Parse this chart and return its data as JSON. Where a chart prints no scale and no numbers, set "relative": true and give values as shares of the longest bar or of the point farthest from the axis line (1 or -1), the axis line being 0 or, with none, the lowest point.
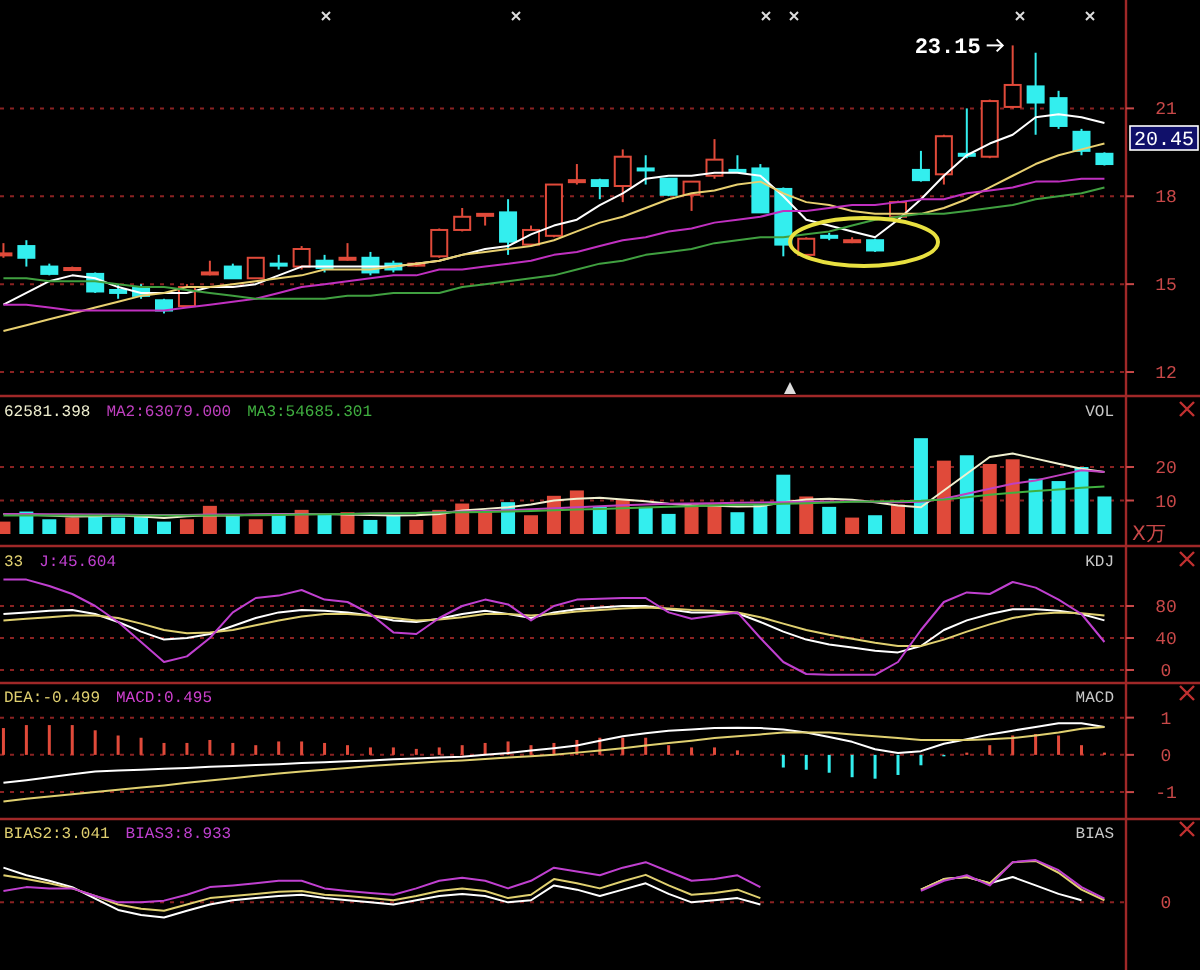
{
  "chart_data": [
    {
      "type": "candlestick",
      "categories": [
        null,
        null,
        null,
        null,
        null,
        null,
        null,
        null,
        null,
        null,
        null,
        null,
        null,
        null,
        null,
        null,
        null,
        null,
        null,
        null,
        null,
        null,
        null,
        null,
        null,
        null,
        null,
        null,
        null,
        null,
        null,
        null,
        null,
        null,
        null,
        null,
        null,
        null,
        null,
        null,
        null,
        null,
        null,
        null,
        null,
        null,
        null,
        null,
        null
      ],
      "ohlc": [
        [
          16.0,
          16.4,
          15.9,
          16.05
        ],
        [
          16.3,
          16.5,
          15.6,
          15.9
        ],
        [
          15.6,
          15.7,
          15.3,
          15.35
        ],
        [
          15.5,
          15.6,
          15.45,
          15.55
        ],
        [
          15.35,
          15.4,
          14.7,
          14.75
        ],
        [
          14.8,
          15.0,
          14.5,
          14.7
        ],
        [
          14.9,
          15.0,
          14.5,
          14.6
        ],
        [
          14.45,
          14.5,
          14.0,
          14.1
        ],
        [
          14.25,
          15.0,
          14.2,
          14.9
        ],
        [
          15.35,
          15.8,
          15.3,
          15.4
        ],
        [
          15.6,
          15.7,
          15.2,
          15.2
        ],
        [
          15.2,
          15.9,
          15.2,
          15.9
        ],
        [
          15.7,
          16.0,
          15.5,
          15.65
        ],
        [
          15.6,
          16.3,
          15.5,
          16.2
        ],
        [
          15.8,
          16.0,
          15.4,
          15.55
        ],
        [
          15.85,
          16.4,
          15.8,
          15.9
        ],
        [
          15.9,
          16.1,
          15.3,
          15.4
        ],
        [
          15.7,
          15.8,
          15.4,
          15.5
        ],
        [
          15.65,
          15.75,
          15.6,
          15.7
        ],
        [
          15.95,
          16.9,
          15.9,
          16.85
        ],
        [
          16.85,
          17.6,
          16.8,
          17.3
        ],
        [
          17.35,
          17.4,
          17.0,
          17.4
        ],
        [
          17.45,
          17.9,
          16.0,
          16.45
        ],
        [
          16.35,
          17.0,
          16.3,
          16.85
        ],
        [
          16.65,
          18.4,
          16.6,
          18.4
        ],
        [
          18.5,
          19.1,
          18.4,
          18.55
        ],
        [
          18.55,
          18.6,
          17.9,
          18.35
        ],
        [
          18.35,
          19.6,
          17.8,
          19.35
        ],
        [
          18.95,
          19.4,
          18.4,
          18.9
        ],
        [
          18.6,
          18.6,
          18.0,
          18.05
        ],
        [
          18.05,
          18.5,
          17.5,
          18.5
        ],
        [
          18.7,
          19.95,
          18.6,
          19.25
        ],
        [
          18.9,
          19.4,
          18.8,
          18.85
        ],
        [
          18.95,
          19.1,
          17.45,
          17.45
        ],
        [
          18.25,
          18.3,
          15.95,
          16.35
        ],
        [
          16.0,
          16.6,
          15.9,
          16.55
        ],
        [
          16.65,
          16.75,
          16.5,
          16.6
        ],
        [
          16.45,
          16.6,
          16.4,
          16.5
        ],
        [
          16.5,
          16.55,
          16.1,
          16.15
        ],
        [
          17.3,
          17.85,
          17.3,
          17.8
        ],
        [
          18.9,
          19.55,
          18.5,
          18.55
        ],
        [
          18.75,
          20.1,
          18.4,
          20.05
        ],
        [
          19.45,
          21.0,
          19.3,
          19.4
        ],
        [
          19.35,
          21.3,
          19.3,
          21.25
        ],
        [
          21.05,
          23.15,
          21.0,
          21.8
        ],
        [
          21.75,
          22.9,
          20.1,
          21.2
        ],
        [
          21.35,
          21.6,
          20.3,
          20.4
        ],
        [
          20.2,
          20.3,
          19.4,
          19.55
        ],
        [
          19.45,
          19.5,
          19.05,
          19.1
        ]
      ],
      "colors": [
        "#e04a3a",
        "#33eeee",
        "#33eeee",
        "#e04a3a",
        "#33eeee",
        "#33eeee",
        "#33eeee",
        "#33eeee",
        "#e04a3a",
        "#e04a3a",
        "#33eeee",
        "#e04a3a",
        "#33eeee",
        "#e04a3a",
        "#33eeee",
        "#e04a3a",
        "#33eeee",
        "#33eeee",
        "#e04a3a",
        "#e04a3a",
        "#e04a3a",
        "#e04a3a",
        "#33eeee",
        "#e04a3a",
        "#e04a3a",
        "#e04a3a",
        "#33eeee",
        "#e04a3a",
        "#33eeee",
        "#33eeee",
        "#e04a3a",
        "#e04a3a",
        "#33eeee",
        "#33eeee",
        "#33eeee",
        "#e04a3a",
        "#33eeee",
        "#e04a3a",
        "#33eeee",
        "#e04a3a",
        "#33eeee",
        "#e04a3a",
        "#33eeee",
        "#e04a3a",
        "#e04a3a",
        "#33eeee",
        "#33eeee",
        "#33eeee",
        "#33eeee"
      ],
      "series": [
        {
          "type": "line",
          "color": "#ffffff",
          "values": [
            14.3,
            14.7,
            15.1,
            15.3,
            15.2,
            14.9,
            14.7,
            14.7,
            14.7,
            14.9,
            14.9,
            15.0,
            15.3,
            15.6,
            15.6,
            15.6,
            15.6,
            15.6,
            15.7,
            15.8,
            16.0,
            16.2,
            16.3,
            16.7,
            17.0,
            17.2,
            17.7,
            18.1,
            18.6,
            18.7,
            18.7,
            18.8,
            18.8,
            18.7,
            18.0,
            17.2,
            17.0,
            16.8,
            16.6,
            17.2,
            17.9,
            18.7,
            19.4,
            19.8,
            20.1,
            20.7,
            20.8,
            20.7,
            20.5
          ]
        },
        {
          "type": "line",
          "color": "#e8d070",
          "values": [
            13.4,
            13.6,
            13.8,
            14.0,
            14.2,
            14.4,
            14.6,
            14.7,
            14.9,
            14.9,
            15.0,
            15.1,
            15.2,
            15.3,
            15.5,
            15.5,
            15.5,
            15.6,
            15.7,
            15.8,
            16.0,
            16.1,
            16.2,
            16.3,
            16.5,
            16.8,
            17.1,
            17.3,
            17.6,
            17.9,
            18.1,
            18.2,
            18.4,
            18.5,
            18.1,
            17.8,
            17.7,
            17.5,
            17.4,
            17.4,
            17.4,
            17.6,
            17.9,
            18.3,
            18.7,
            19.1,
            19.4,
            19.6,
            19.8
          ]
        },
        {
          "type": "line",
          "color": "#c030c0",
          "values": [
            14.3,
            14.3,
            14.2,
            14.1,
            14.1,
            14.1,
            14.1,
            14.1,
            14.2,
            14.3,
            14.4,
            14.5,
            14.7,
            14.9,
            15.0,
            15.1,
            15.2,
            15.3,
            15.3,
            15.5,
            15.5,
            15.6,
            15.7,
            15.8,
            16.0,
            16.1,
            16.3,
            16.5,
            16.6,
            16.8,
            16.9,
            17.1,
            17.2,
            17.3,
            17.5,
            17.5,
            17.6,
            17.7,
            17.7,
            17.8,
            17.9,
            17.9,
            18.1,
            18.2,
            18.3,
            18.5,
            18.5,
            18.6,
            18.6
          ]
        },
        {
          "type": "line",
          "color": "#40a040",
          "values": [
            15.2,
            15.2,
            15.1,
            15.1,
            15.1,
            15.0,
            14.9,
            14.9,
            14.8,
            14.7,
            14.6,
            14.5,
            14.5,
            14.5,
            14.5,
            14.6,
            14.6,
            14.7,
            14.7,
            14.7,
            14.9,
            15.0,
            15.1,
            15.2,
            15.3,
            15.5,
            15.7,
            15.8,
            16.0,
            16.1,
            16.2,
            16.4,
            16.5,
            16.6,
            16.6,
            16.7,
            16.8,
            17.0,
            17.2,
            17.3,
            17.4,
            17.4,
            17.5,
            17.6,
            17.7,
            17.9,
            18.0,
            18.1,
            18.3
          ]
        }
      ],
      "ylim": [
        11.25,
        24.7
      ],
      "yticks": [
        12,
        15,
        18,
        21
      ],
      "grid": "y",
      "tick_labels": "y",
      "annotations": [
        "23.15",
        "20.45"
      ]
    },
    {
      "type": "bar",
      "title": "VOL",
      "ylabel": "X万",
      "categories": [
        null,
        null,
        null,
        null,
        null,
        null,
        null,
        null,
        null,
        null,
        null,
        null,
        null,
        null,
        null,
        null,
        null,
        null,
        null,
        null,
        null,
        null,
        null,
        null,
        null,
        null,
        null,
        null,
        null,
        null,
        null,
        null,
        null,
        null,
        null,
        null,
        null,
        null,
        null,
        null,
        null,
        null,
        null,
        null,
        null,
        null,
        null,
        null,
        null
      ],
      "series": [
        {
          "type": "bar",
          "values": [
            3.7,
            6.7,
            4.4,
            4.9,
            6.0,
            4.9,
            5.6,
            3.7,
            4.4,
            8.4,
            5.6,
            4.4,
            6.0,
            7.2,
            6.0,
            6.5,
            4.2,
            5.6,
            4.2,
            7.2,
            9.1,
            6.7,
            9.5,
            5.6,
            11.4,
            13.0,
            8.1,
            10.2,
            8.1,
            6.0,
            8.8,
            8.8,
            6.5,
            8.8,
            17.7,
            11.2,
            8.1,
            4.9,
            5.6,
            8.8,
            28.6,
            21.9,
            23.5,
            20.9,
            22.3,
            16.5,
            15.8,
            20.0,
            11.2
          ],
          "colors": [
            "#e04a3a",
            "#33eeee",
            "#33eeee",
            "#e04a3a",
            "#33eeee",
            "#33eeee",
            "#33eeee",
            "#33eeee",
            "#e04a3a",
            "#e04a3a",
            "#33eeee",
            "#e04a3a",
            "#33eeee",
            "#e04a3a",
            "#33eeee",
            "#e04a3a",
            "#33eeee",
            "#33eeee",
            "#e04a3a",
            "#e04a3a",
            "#e04a3a",
            "#e04a3a",
            "#33eeee",
            "#e04a3a",
            "#e04a3a",
            "#e04a3a",
            "#33eeee",
            "#e04a3a",
            "#33eeee",
            "#33eeee",
            "#e04a3a",
            "#e04a3a",
            "#33eeee",
            "#33eeee",
            "#33eeee",
            "#e04a3a",
            "#33eeee",
            "#e04a3a",
            "#33eeee",
            "#e04a3a",
            "#33eeee",
            "#e04a3a",
            "#33eeee",
            "#e04a3a",
            "#e04a3a",
            "#33eeee",
            "#33eeee",
            "#33eeee",
            "#33eeee"
          ]
        },
        {
          "type": "line",
          "name": "62581.398",
          "color": "#f0f0d0",
          "values": [
            6.0,
            5.8,
            5.5,
            5.2,
            5.3,
            5.5,
            5.2,
            4.8,
            5.3,
            5.6,
            5.5,
            5.8,
            5.9,
            6.0,
            6.0,
            5.8,
            5.7,
            5.5,
            5.6,
            6.0,
            7.0,
            7.5,
            8.0,
            8.8,
            10.0,
            10.5,
            10.8,
            10.3,
            9.8,
            9.0,
            8.6,
            8.4,
            8.2,
            8.3,
            9.5,
            10.3,
            10.5,
            10.2,
            9.5,
            8.5,
            8.0,
            13.0,
            18.0,
            23.0,
            24.0,
            22.5,
            21.0,
            19.5,
            18.5
          ]
        },
        {
          "type": "line",
          "name": "MA2:63079.000",
          "color": "#c040c0",
          "values": [
            6.0,
            6.0,
            5.9,
            5.9,
            5.8,
            5.8,
            5.7,
            5.7,
            5.7,
            5.8,
            5.8,
            5.8,
            5.9,
            5.9,
            6.0,
            6.0,
            6.1,
            6.2,
            6.3,
            6.5,
            6.7,
            6.9,
            7.1,
            7.4,
            7.7,
            8.0,
            8.3,
            8.6,
            8.8,
            9.0,
            9.1,
            9.2,
            9.3,
            9.4,
            9.5,
            9.6,
            9.7,
            9.7,
            9.6,
            9.5,
            9.6,
            10.5,
            12.0,
            13.5,
            15.0,
            16.0,
            17.5,
            19.0,
            18.5
          ]
        },
        {
          "type": "line",
          "name": "MA3:54685.301",
          "color": "#40b040",
          "values": [
            5.5,
            5.5,
            5.5,
            5.5,
            5.5,
            5.5,
            5.5,
            5.5,
            5.5,
            5.5,
            5.6,
            5.6,
            5.7,
            5.8,
            5.9,
            6.0,
            6.1,
            6.2,
            6.3,
            6.4,
            6.5,
            6.6,
            6.7,
            6.9,
            7.1,
            7.3,
            7.5,
            7.7,
            7.9,
            8.1,
            8.3,
            8.5,
            8.7,
            8.8,
            9.0,
            9.2,
            9.4,
            9.6,
            9.7,
            9.8,
            9.9,
            10.3,
            11.0,
            11.7,
            12.3,
            12.8,
            13.3,
            13.8,
            14.2
          ]
        }
      ],
      "ylim": [
        0,
        40
      ],
      "yticks": [
        10,
        20
      ],
      "grid": "y",
      "tick_labels": "y",
      "legend": "top left"
    },
    {
      "type": "line",
      "title": "KDJ",
      "categories": [
        null,
        null,
        null,
        null,
        null,
        null,
        null,
        null,
        null,
        null,
        null,
        null,
        null,
        null,
        null,
        null,
        null,
        null,
        null,
        null,
        null,
        null,
        null,
        null,
        null,
        null,
        null,
        null,
        null,
        null,
        null,
        null,
        null,
        null,
        null,
        null,
        null,
        null,
        null,
        null,
        null,
        null,
        null,
        null,
        null,
        null,
        null,
        null,
        null
      ],
      "series": [
        {
          "color": "#ffffff",
          "values": [
            70,
            72,
            74,
            75,
            70,
            60,
            48,
            38,
            40,
            45,
            55,
            65,
            72,
            75,
            74,
            72,
            68,
            62,
            60,
            64,
            70,
            74,
            70,
            65,
            72,
            76,
            78,
            80,
            80,
            76,
            72,
            72,
            71,
            60,
            48,
            38,
            32,
            28,
            24,
            22,
            30,
            50,
            62,
            70,
            76,
            76,
            74,
            70,
            62
          ]
        },
        {
          "name": "33",
          "color": "#e0d070",
          "values": [
            62,
            64,
            66,
            68,
            68,
            65,
            58,
            50,
            46,
            47,
            50,
            56,
            62,
            67,
            70,
            70,
            68,
            65,
            62,
            63,
            66,
            70,
            70,
            68,
            70,
            73,
            75,
            77,
            78,
            77,
            75,
            74,
            72,
            66,
            58,
            50,
            44,
            39,
            34,
            30,
            30,
            38,
            48,
            57,
            65,
            70,
            72,
            71,
            68
          ]
        },
        {
          "name": "J:45.604",
          "color": "#c040d0",
          "values": [
            113,
            113,
            105,
            95,
            80,
            60,
            35,
            10,
            17,
            40,
            72,
            90,
            93,
            100,
            88,
            85,
            70,
            47,
            45,
            65,
            80,
            88,
            82,
            62,
            80,
            88,
            89,
            90,
            90,
            72,
            64,
            68,
            72,
            40,
            10,
            -5,
            -6,
            -6,
            -6,
            10,
            50,
            85,
            97,
            95,
            110,
            103,
            88,
            70,
            35
          ]
        }
      ],
      "ylim": [
        -15,
        150
      ],
      "yticks": [
        0,
        40,
        80
      ],
      "grid": "y",
      "tick_labels": "y",
      "legend": "top left"
    },
    {
      "type": "bar",
      "title": "MACD",
      "categories": [
        null,
        null,
        null,
        null,
        null,
        null,
        null,
        null,
        null,
        null,
        null,
        null,
        null,
        null,
        null,
        null,
        null,
        null,
        null,
        null,
        null,
        null,
        null,
        null,
        null,
        null,
        null,
        null,
        null,
        null,
        null,
        null,
        null,
        null,
        null,
        null,
        null,
        null,
        null,
        null,
        null,
        null,
        null,
        null,
        null,
        null,
        null,
        null,
        null
      ],
      "series": [
        {
          "type": "bar",
          "values": [
            0.72,
            0.8,
            0.8,
            0.8,
            0.66,
            0.52,
            0.46,
            0.32,
            0.32,
            0.4,
            0.32,
            0.26,
            0.36,
            0.36,
            0.32,
            0.26,
            0.2,
            0.2,
            0.16,
            0.2,
            0.26,
            0.32,
            0.36,
            0.26,
            0.32,
            0.4,
            0.46,
            0.46,
            0.46,
            0.26,
            0.2,
            0.2,
            0.12,
            0,
            -0.34,
            -0.4,
            -0.48,
            -0.6,
            -0.64,
            -0.54,
            -0.28,
            -0.04,
            0.06,
            0.26,
            0.52,
            0.56,
            0.52,
            0.26,
            0.06
          ],
          "colors": [
            "#e04a3a",
            "#e04a3a",
            "#e04a3a",
            "#e04a3a",
            "#e04a3a",
            "#e04a3a",
            "#e04a3a",
            "#e04a3a",
            "#e04a3a",
            "#e04a3a",
            "#e04a3a",
            "#e04a3a",
            "#e04a3a",
            "#e04a3a",
            "#e04a3a",
            "#e04a3a",
            "#e04a3a",
            "#e04a3a",
            "#e04a3a",
            "#e04a3a",
            "#e04a3a",
            "#e04a3a",
            "#e04a3a",
            "#e04a3a",
            "#e04a3a",
            "#e04a3a",
            "#e04a3a",
            "#e04a3a",
            "#e04a3a",
            "#e04a3a",
            "#e04a3a",
            "#e04a3a",
            "#e04a3a",
            "#e04a3a",
            "#33eeee",
            "#33eeee",
            "#33eeee",
            "#33eeee",
            "#33eeee",
            "#33eeee",
            "#33eeee",
            "#33eeee",
            "#e04a3a",
            "#e04a3a",
            "#e04a3a",
            "#e04a3a",
            "#e04a3a",
            "#e04a3a",
            "#e04a3a"
          ]
        },
        {
          "type": "line",
          "color": "#ffffff",
          "values": [
            -0.75,
            -0.68,
            -0.6,
            -0.52,
            -0.45,
            -0.42,
            -0.4,
            -0.37,
            -0.35,
            -0.32,
            -0.3,
            -0.27,
            -0.25,
            -0.22,
            -0.2,
            -0.17,
            -0.15,
            -0.12,
            -0.1,
            -0.07,
            -0.05,
            0.0,
            0.05,
            0.12,
            0.18,
            0.25,
            0.38,
            0.5,
            0.58,
            0.65,
            0.68,
            0.72,
            0.73,
            0.72,
            0.68,
            0.6,
            0.48,
            0.35,
            0.15,
            0.05,
            0.1,
            0.3,
            0.42,
            0.55,
            0.65,
            0.75,
            0.85,
            0.85,
            0.75
          ]
        },
        {
          "type": "line",
          "name": "DEA:-0.499",
          "color": "#e0d070",
          "values": [
            -1.25,
            -1.18,
            -1.12,
            -1.06,
            -1.0,
            -0.94,
            -0.88,
            -0.82,
            -0.75,
            -0.69,
            -0.63,
            -0.56,
            -0.5,
            -0.45,
            -0.4,
            -0.35,
            -0.3,
            -0.26,
            -0.22,
            -0.18,
            -0.15,
            -0.11,
            -0.07,
            -0.04,
            0.0,
            0.06,
            0.12,
            0.18,
            0.25,
            0.32,
            0.38,
            0.45,
            0.5,
            0.55,
            0.6,
            0.6,
            0.6,
            0.55,
            0.5,
            0.45,
            0.4,
            0.4,
            0.4,
            0.42,
            0.45,
            0.52,
            0.6,
            0.7,
            0.75
          ]
        }
      ],
      "ylim": [
        -1.75,
        1.85
      ],
      "yticks": [
        -1,
        0,
        1
      ],
      "grid": "y",
      "tick_labels": "y",
      "legend": "top left",
      "annotations": [
        "MACD:0.495"
      ]
    },
    {
      "type": "line",
      "title": "BIAS",
      "relative": true,
      "categories": [
        null,
        null,
        null,
        null,
        null,
        null,
        null,
        null,
        null,
        null,
        null,
        null,
        null,
        null,
        null,
        null,
        null,
        null,
        null,
        null,
        null,
        null,
        null,
        null,
        null,
        null,
        null,
        null,
        null,
        null,
        null,
        null,
        null,
        null,
        null,
        null,
        null,
        null,
        null,
        null,
        null,
        null,
        null,
        null,
        null,
        null,
        null,
        null,
        null
      ],
      "series": [
        {
          "color": "#ffffff",
          "values": [
            0.82,
            0.64,
            0.51,
            0.36,
            0.09,
            -0.18,
            -0.3,
            -0.36,
            -0.2,
            -0.05,
            0.05,
            0.1,
            0.15,
            0.18,
            0.1,
            0.05,
            0,
            -0.05,
            0.05,
            0.15,
            0.2,
            0.15,
            0,
            0.05,
            0.4,
            0.3,
            0.15,
            0.3,
            0.45,
            0.2,
            0,
            0.05,
            0.1,
            -0.05,
            null,
            null,
            null,
            null,
            null,
            null,
            0.3,
            0.55,
            0.6,
            0.45,
            0.6,
            0.4,
            0.2,
            0.05,
            null
          ]
        },
        {
          "name": "BIAS2:3.041",
          "color": "#e0d070",
          "values": [
            0.64,
            0.55,
            0.45,
            0.33,
            0.15,
            -0.05,
            -0.15,
            -0.2,
            -0.05,
            0.1,
            0.15,
            0.2,
            0.25,
            0.27,
            0.18,
            0.15,
            0.1,
            0.05,
            0.15,
            0.27,
            0.33,
            0.27,
            0.1,
            0.18,
            0.55,
            0.45,
            0.33,
            0.5,
            0.65,
            0.4,
            0.18,
            0.22,
            0.3,
            0.1,
            null,
            null,
            null,
            null,
            null,
            null,
            0.3,
            0.55,
            0.6,
            0.45,
            0.95,
            0.98,
            0.7,
            0.3,
            0.05
          ]
        },
        {
          "name": "BIAS3:8.933",
          "color": "#c040d0",
          "values": [
            0.27,
            0.36,
            0.33,
            0.33,
            0.15,
            0,
            0,
            0.04,
            0.18,
            0.36,
            0.4,
            0.45,
            0.51,
            0.51,
            0.33,
            0.27,
            0.22,
            0.18,
            0.33,
            0.51,
            0.58,
            0.51,
            0.33,
            0.51,
            0.82,
            0.73,
            0.64,
            0.82,
            0.95,
            0.73,
            0.51,
            0.55,
            0.64,
            0.36,
            null,
            null,
            null,
            null,
            null,
            null,
            0.27,
            0.51,
            0.64,
            0.4,
            0.95,
            1,
            0.76,
            0.36,
            0.09
          ]
        }
      ],
      "ref_lines": [
        {
          "axis": "y",
          "value": 0,
          "label": "0"
        }
      ],
      "tick_labels": "y",
      "legend": "top left"
    }
  ]
}
